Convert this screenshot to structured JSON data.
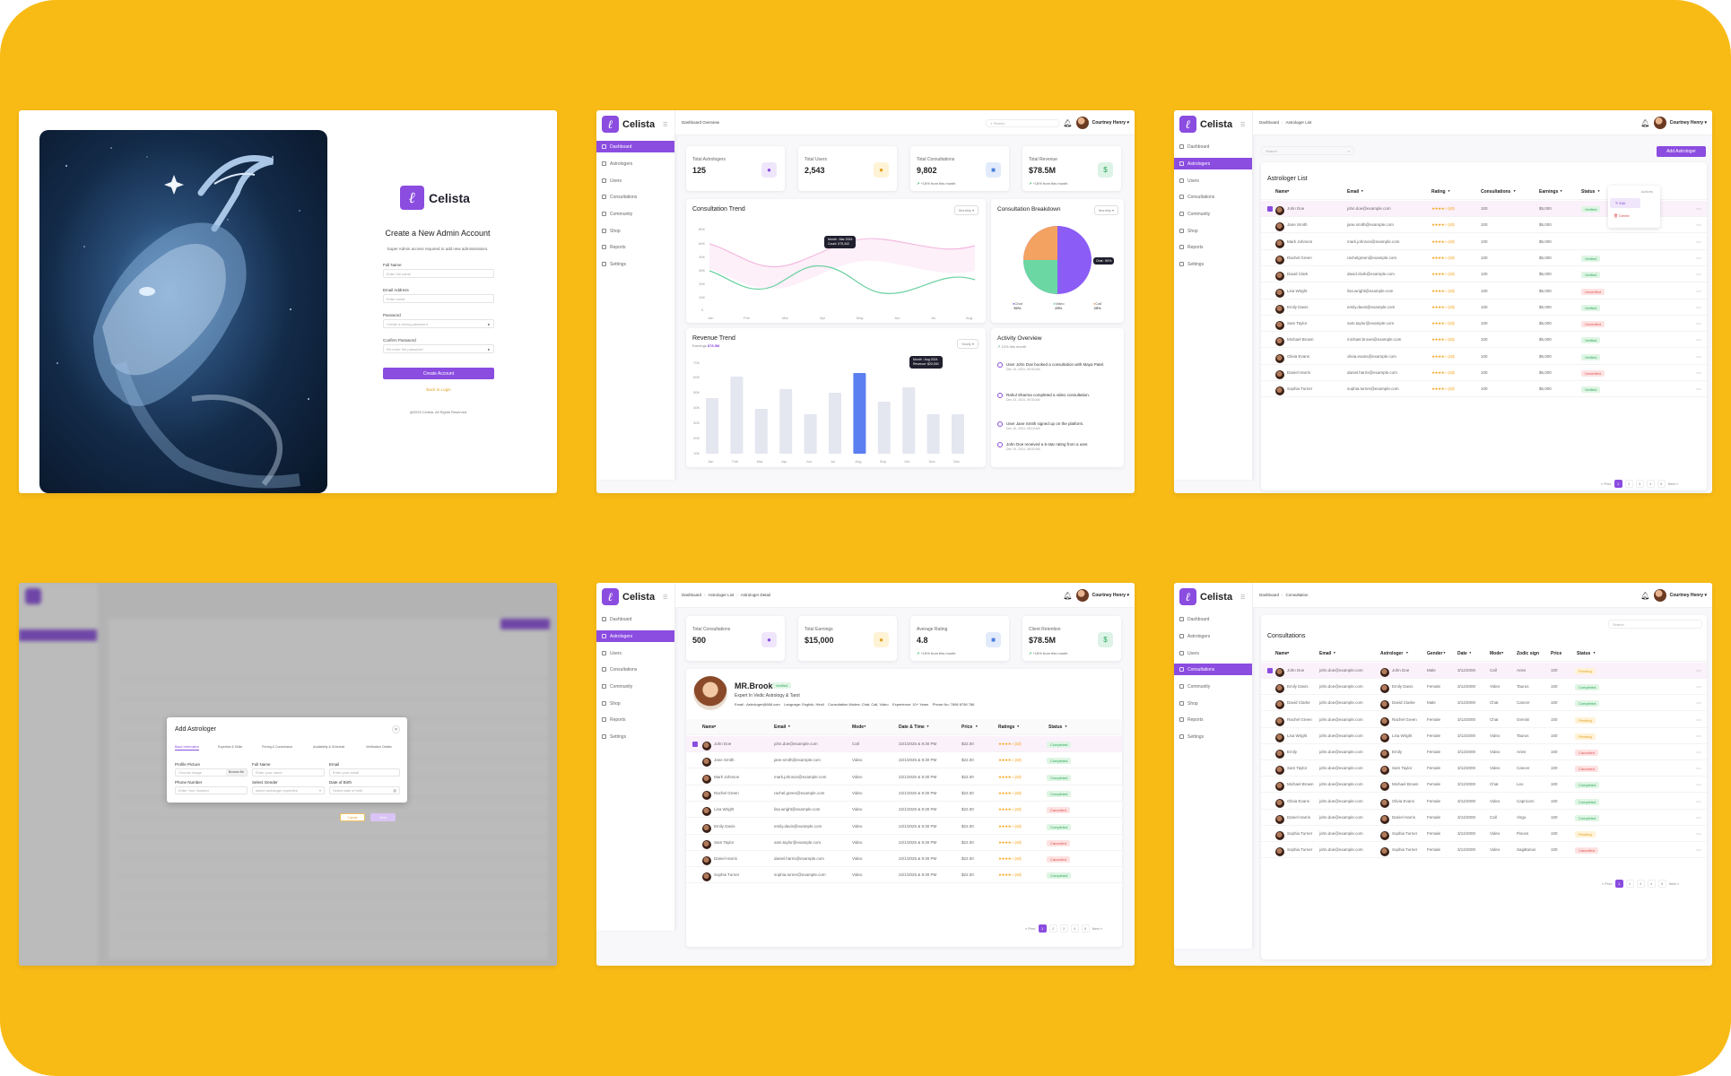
{
  "brand": {
    "name": "Celista",
    "logo_glyph": "ℓ",
    "accent": "#8b4ce0",
    "background": "#f8bb16"
  },
  "user": {
    "name": "Courtney Henry"
  },
  "nav": [
    "Dashboard",
    "Astrologers",
    "Users",
    "Consultations",
    "Community",
    "Shop",
    "Reports",
    "Settings"
  ],
  "login": {
    "title": "Create a New Admin Account",
    "subtitle": "Super Admin access required to add new administrators.",
    "fields": [
      {
        "label": "Full Name",
        "placeholder": "Enter full name"
      },
      {
        "label": "Email Address",
        "placeholder": "Enter email"
      },
      {
        "label": "Password",
        "placeholder": "Create a strong password"
      },
      {
        "label": "Confirm Password",
        "placeholder": "Re-enter the password"
      }
    ],
    "button": "Create Account",
    "back_link": "Back to Login",
    "footer": "@2025 Celista. All Rights Reserved."
  },
  "dashboard": {
    "breadcrumb": "Dashboard Overview",
    "search_placeholder": "Search",
    "stats": [
      {
        "label": "Total Astrologers",
        "value": "125"
      },
      {
        "label": "Total Users",
        "value": "2,543"
      },
      {
        "label": "Total Consultations",
        "value": "9,802",
        "sub": "+15% from this month"
      },
      {
        "label": "Total Revenue",
        "value": "$78.5M",
        "sub": "+15% from this month"
      }
    ],
    "consultation_trend": {
      "title": "Consultation Trend",
      "filter": "Monthly",
      "tooltip": [
        "Month : Mar 2024",
        "Count: 575,342"
      ],
      "y_ticks": [
        "80K",
        "60K",
        "40K",
        "30K",
        "20K",
        "10K",
        "0"
      ],
      "x_ticks": [
        "Jan",
        "Feb",
        "Mar",
        "Apr",
        "May",
        "Jun",
        "Jul",
        "Aug"
      ]
    },
    "breakdown": {
      "title": "Consultation Breakdown",
      "filter": "Monthly",
      "tooltip": "Chat : 50%",
      "legend": [
        {
          "name": "Chat",
          "value": "50%",
          "color": "#8b5cf6"
        },
        {
          "name": "Video",
          "value": "25%",
          "color": "#6bd7a3"
        },
        {
          "name": "Call",
          "value": "25%",
          "color": "#f4a261"
        }
      ]
    },
    "revenue": {
      "title": "Revenue Trend",
      "earnings_label": "Earnings",
      "earnings_value": "$78.5M",
      "filter": "Yearly",
      "tooltip": [
        "Month : Aug 2024",
        "Revenue: $20,000"
      ],
      "y_ticks": [
        "70K",
        "60K",
        "50K",
        "40K",
        "30K",
        "20K",
        "10K"
      ],
      "months": [
        "Jan",
        "Feb",
        "Mar",
        "Apr",
        "Jun",
        "Jul",
        "Aug",
        "Sep",
        "Oct",
        "Nov",
        "Dec"
      ],
      "values": [
        0.62,
        0.86,
        0.5,
        0.72,
        0.44,
        0.68,
        0.9,
        0.58,
        0.74,
        0.44,
        0.44
      ]
    },
    "activity": {
      "title": "Activity Overview",
      "subtitle": "12% this month",
      "items": [
        {
          "text": "User John Doe booked a consultation with Maya Patel.",
          "time": "Dec 10, 2024, 09:30 AM"
        },
        {
          "text": "Rahul Sharma completed a video consultation.",
          "time": "Dec 10, 2024, 09:30 AM"
        },
        {
          "text": "User Jane Smith signed up on the platform.",
          "time": "Dec 10, 2024, 08:15 AM"
        },
        {
          "text": "John Doe received a 5-star rating from a user.",
          "time": "Dec 10, 2024, 08:00 AM"
        }
      ]
    }
  },
  "astrologer_list": {
    "breadcrumb": [
      "Dashboard",
      "Astrologer List"
    ],
    "search_placeholder": "Search",
    "add_button": "Add Astrologer",
    "title": "Astrologer List",
    "columns": [
      "Name",
      "Email",
      "Rating",
      "Consultations",
      "Earnings",
      "Status"
    ],
    "menu": [
      "Actions",
      "Edit",
      "Delete"
    ],
    "rows": [
      {
        "name": "John Doe",
        "email": "john.doe@example.com",
        "rating": "★★★★☆ (4.0)",
        "consult": "100",
        "earn": "$5,000",
        "status": "Verified"
      },
      {
        "name": "Jane Smith",
        "email": "jane.smith@example.com",
        "rating": "★★★★☆ (4.0)",
        "consult": "100",
        "earn": "$5,000",
        "status": ""
      },
      {
        "name": "Mark Johnson",
        "email": "mark.johnson@example.com",
        "rating": "★★★★☆ (4.0)",
        "consult": "100",
        "earn": "$5,000",
        "status": ""
      },
      {
        "name": "Rachel Green",
        "email": "rachelgreen@example.com",
        "rating": "★★★★☆ (4.0)",
        "consult": "100",
        "earn": "$5,000",
        "status": "Verified"
      },
      {
        "name": "David Clark",
        "email": "david.clark@example.com",
        "rating": "★★★★☆ (4.0)",
        "consult": "100",
        "earn": "$5,000",
        "status": "Verified"
      },
      {
        "name": "Lisa Wright",
        "email": "lisa.wright@example.com",
        "rating": "★★★★☆ (4.0)",
        "consult": "100",
        "earn": "$5,000",
        "status": "Unverified"
      },
      {
        "name": "Emily Davis",
        "email": "emily.davis@example.com",
        "rating": "★★★★☆ (4.0)",
        "consult": "100",
        "earn": "$5,000",
        "status": "Verified"
      },
      {
        "name": "Sam Taylor",
        "email": "sam.taylor@example.com",
        "rating": "★★★★☆ (4.0)",
        "consult": "100",
        "earn": "$5,000",
        "status": "Unverified"
      },
      {
        "name": "Michael Brown",
        "email": "michael.brown@example.com",
        "rating": "★★★★☆ (4.0)",
        "consult": "100",
        "earn": "$5,000",
        "status": "Verified"
      },
      {
        "name": "Olivia Evans",
        "email": "olivia.evans@example.com",
        "rating": "★★★★☆ (4.0)",
        "consult": "100",
        "earn": "$5,000",
        "status": "Verified"
      },
      {
        "name": "Daniel Harris",
        "email": "daniel.harris@example.com",
        "rating": "★★★★☆ (4.0)",
        "consult": "100",
        "earn": "$5,000",
        "status": "Unverified"
      },
      {
        "name": "Sophia Turner",
        "email": "sophia.turner@example.com",
        "rating": "★★★★☆ (4.0)",
        "consult": "100",
        "earn": "$5,000",
        "status": "Verified"
      }
    ],
    "pager": [
      "« Prev",
      "1",
      "2",
      "3",
      "4",
      "5",
      "Next »"
    ]
  },
  "modal": {
    "title": "Add Astrologer",
    "tabs": [
      "Basic Information",
      "Expertise & Skills",
      "Pricing & Commission",
      "Availability & Schedule",
      "Verification Details"
    ],
    "fields": [
      {
        "label": "Profile Picture",
        "placeholder": "Choose image"
      },
      {
        "label": "Full Name",
        "placeholder": "Enter your name"
      },
      {
        "label": "Email",
        "placeholder": "Enter your email"
      },
      {
        "label": "Phone Number",
        "placeholder": "Enter Your Number"
      },
      {
        "label": "Select Gender",
        "placeholder": "select astrologer experties"
      },
      {
        "label": "Date of Birth",
        "placeholder": "Select date of birth"
      }
    ],
    "browse": "Browse file",
    "cancel": "Cancel",
    "next": "Next"
  },
  "detail": {
    "breadcrumb": [
      "Dashboard",
      "Astrologer List",
      "Astrologer Detail"
    ],
    "stats": [
      {
        "label": "Total Consultations",
        "value": "500"
      },
      {
        "label": "Total Earnings",
        "value": "$15,000"
      },
      {
        "label": "Average Rating",
        "value": "4.8",
        "sub": "+15% from this month"
      },
      {
        "label": "Client Retention",
        "value": "$78.5M",
        "sub": "+15% from this month"
      }
    ],
    "name": "MR.Brook",
    "badge": "Verified",
    "expertise": "Expert In Vedic Astrology & Tarot",
    "info": "Email : Astrologer@666.com    Language: English, Hindi    Consultation Modes: Chat, Call, Video    Experience: 10+ Years    Phone No: 7898 6798 786",
    "columns": [
      "Name",
      "Email",
      "Mode",
      "Date & Time",
      "Price",
      "Ratings",
      "Status"
    ],
    "rows": [
      {
        "name": "John Doe",
        "email": "john.doe@example.com",
        "mode": "Call",
        "date": "22/1/2025 & 9:30 PM",
        "price": "$22.00",
        "rating": "★★★★☆ (4.0)",
        "status": "Completed"
      },
      {
        "name": "Jane Smith",
        "email": "jane.smith@example.com",
        "mode": "Video",
        "date": "22/1/2025 & 9:30 PM",
        "price": "$22.00",
        "rating": "★★★★☆ (4.0)",
        "status": "Completed"
      },
      {
        "name": "Mark Johnson",
        "email": "mark.johnson@example.com",
        "mode": "Video",
        "date": "22/1/2025 & 9:30 PM",
        "price": "$22.00",
        "rating": "★★★★☆ (4.0)",
        "status": "Completed"
      },
      {
        "name": "Rachel Green",
        "email": "rachel.green@example.com",
        "mode": "Video",
        "date": "22/1/2025 & 9:30 PM",
        "price": "$22.00",
        "rating": "★★★★☆ (4.0)",
        "status": "Completed"
      },
      {
        "name": "Lisa Wright",
        "email": "lisa.wright@example.com",
        "mode": "Video",
        "date": "22/1/2025 & 9:30 PM",
        "price": "$22.00",
        "rating": "★★★★☆ (4.0)",
        "status": "Cancelled"
      },
      {
        "name": "Emily Davis",
        "email": "emily.davis@example.com",
        "mode": "Video",
        "date": "22/1/2025 & 9:30 PM",
        "price": "$22.00",
        "rating": "★★★★☆ (4.0)",
        "status": "Completed"
      },
      {
        "name": "Sam Taylor",
        "email": "sam.taylor@example.com",
        "mode": "Video",
        "date": "22/1/2025 & 9:30 PM",
        "price": "$22.00",
        "rating": "★★★★☆ (4.0)",
        "status": "Cancelled"
      },
      {
        "name": "Daniel Harris",
        "email": "daniel.harris@example.com",
        "mode": "Video",
        "date": "22/1/2025 & 9:30 PM",
        "price": "$22.00",
        "rating": "★★★★☆ (4.0)",
        "status": "Cancelled"
      },
      {
        "name": "Sophia Turner",
        "email": "sophia.turner@example.com",
        "mode": "Video",
        "date": "22/1/2025 & 9:30 PM",
        "price": "$22.00",
        "rating": "★★★★☆ (4.0)",
        "status": "Completed"
      }
    ],
    "pager": [
      "« Prev",
      "1",
      "2",
      "3",
      "4",
      "5",
      "Next »"
    ]
  },
  "consultations": {
    "breadcrumb": [
      "Dashboard",
      "Consultation"
    ],
    "search_placeholder": "Search",
    "title": "Consultations",
    "columns": [
      "Name",
      "Email",
      "Astrologer",
      "Gender",
      "Date",
      "Mode",
      "Zodic sign",
      "Price",
      "Status"
    ],
    "rows": [
      {
        "name": "John Doe",
        "email": "john.doe@example.com",
        "astro": "John Doe",
        "gender": "Male",
        "date": "3/12/2000",
        "mode": "Call",
        "sign": "Aries",
        "price": "100",
        "status": "Pending"
      },
      {
        "name": "Emily Davis",
        "email": "john.doe@example.com",
        "astro": "Emily Davis",
        "gender": "Female",
        "date": "3/12/2000",
        "mode": "Video",
        "sign": "Taurus",
        "price": "100",
        "status": "Completed"
      },
      {
        "name": "David Clarke",
        "email": "john.doe@example.com",
        "astro": "David Clarke",
        "gender": "Male",
        "date": "3/12/2000",
        "mode": "Chat",
        "sign": "Cancer",
        "price": "100",
        "status": "Completed"
      },
      {
        "name": "Rachel Green",
        "email": "john.doe@example.com",
        "astro": "Rachel Green",
        "gender": "Female",
        "date": "3/12/2000",
        "mode": "Chat",
        "sign": "Gemini",
        "price": "100",
        "status": "Pending"
      },
      {
        "name": "Lisa Wright",
        "email": "john.doe@example.com",
        "astro": "Lisa Wright",
        "gender": "Female",
        "date": "3/12/2000",
        "mode": "Video",
        "sign": "Taurus",
        "price": "100",
        "status": "Pending"
      },
      {
        "name": "Emily",
        "email": "john.doe@example.com",
        "astro": "Emily",
        "gender": "Female",
        "date": "3/12/2000",
        "mode": "Video",
        "sign": "Aries",
        "price": "100",
        "status": "Cancelled"
      },
      {
        "name": "Sam Taylor",
        "email": "john.doe@example.com",
        "astro": "Sam Taylor",
        "gender": "Female",
        "date": "3/12/2000",
        "mode": "Video",
        "sign": "Cancer",
        "price": "100",
        "status": "Cancelled"
      },
      {
        "name": "Michael Brown",
        "email": "john.doe@example.com",
        "astro": "Michael Brown",
        "gender": "Female",
        "date": "3/12/2000",
        "mode": "Chat",
        "sign": "Leo",
        "price": "100",
        "status": "Completed"
      },
      {
        "name": "Olivia Evans",
        "email": "john.doe@example.com",
        "astro": "Olivia Evans",
        "gender": "Female",
        "date": "3/12/2000",
        "mode": "Video",
        "sign": "Capricorn",
        "price": "100",
        "status": "Completed"
      },
      {
        "name": "Daniel Harris",
        "email": "john.doe@example.com",
        "astro": "Daniel Harris",
        "gender": "Female",
        "date": "3/12/2000",
        "mode": "Call",
        "sign": "Virgo",
        "price": "100",
        "status": "Completed"
      },
      {
        "name": "Sophia Turner",
        "email": "john.doe@example.com",
        "astro": "Sophia Turner",
        "gender": "Female",
        "date": "3/12/2000",
        "mode": "Video",
        "sign": "Pisces",
        "price": "100",
        "status": "Pending"
      },
      {
        "name": "Sophia Turner",
        "email": "john.doe@example.com",
        "astro": "Sophia Turner",
        "gender": "Female",
        "date": "3/12/2000",
        "mode": "Video",
        "sign": "Sagittarius",
        "price": "100",
        "status": "Cancelled"
      }
    ],
    "pager": [
      "« Prev",
      "1",
      "2",
      "3",
      "4",
      "5",
      "Next »"
    ]
  }
}
